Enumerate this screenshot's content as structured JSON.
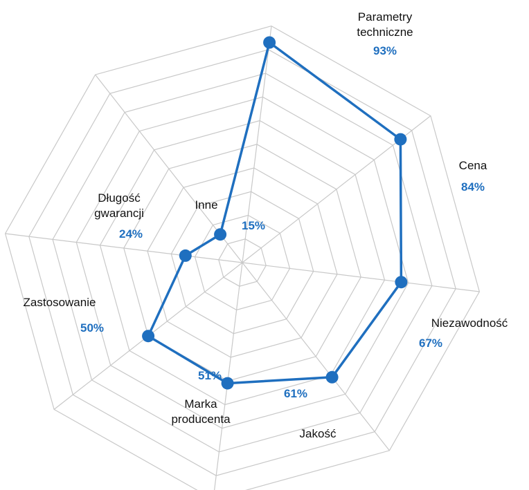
{
  "chart_data": {
    "type": "radar",
    "title": "",
    "rmax": 100,
    "grid_levels": 10,
    "grid_on": true,
    "series_color": "#1f6fbf",
    "grid_color": "#c8c8c8",
    "categories": [
      {
        "lines": [
          "Parametry",
          "techniczne"
        ],
        "value": 93,
        "value_label": "93%"
      },
      {
        "lines": [
          "Cena"
        ],
        "value": 84,
        "value_label": "84%"
      },
      {
        "lines": [
          "Niezawodność"
        ],
        "value": 67,
        "value_label": "67%"
      },
      {
        "lines": [
          "Jakość"
        ],
        "value": 61,
        "value_label": "61%"
      },
      {
        "lines": [
          "Marka",
          "producenta"
        ],
        "value": 51,
        "value_label": "51%"
      },
      {
        "lines": [
          "Zastosowanie"
        ],
        "value": 50,
        "value_label": "50%"
      },
      {
        "lines": [
          "Długość",
          "gwarancji"
        ],
        "value": 24,
        "value_label": "24%"
      },
      {
        "lines": [
          "Inne"
        ],
        "value": 15,
        "value_label": "15%"
      }
    ]
  }
}
